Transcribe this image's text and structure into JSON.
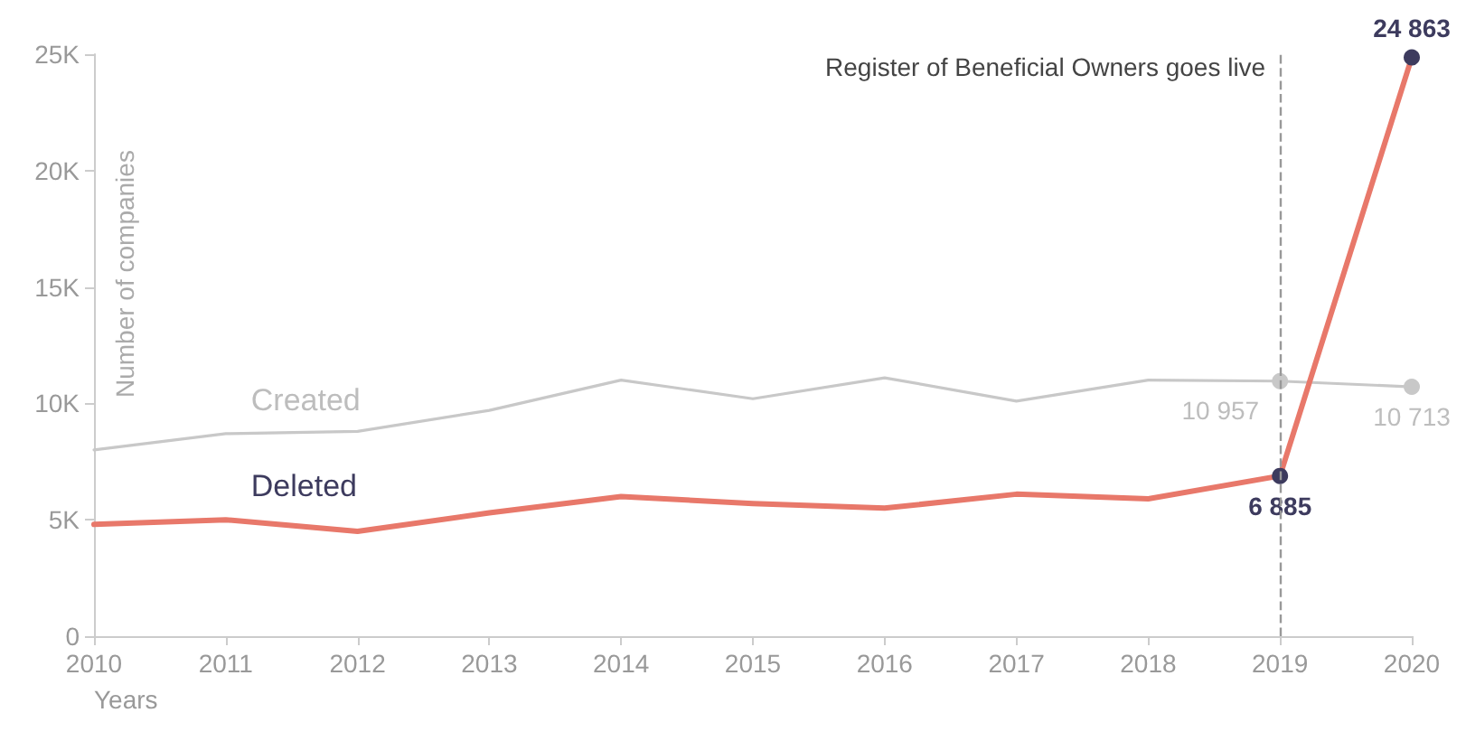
{
  "chart_data": {
    "type": "line",
    "xlabel": "Years",
    "ylabel": "Number of companies",
    "x": [
      2010,
      2011,
      2012,
      2013,
      2014,
      2015,
      2016,
      2017,
      2018,
      2019,
      2020
    ],
    "series": [
      {
        "name": "Created",
        "color": "#c8c8c8",
        "values": [
          8000,
          8700,
          8800,
          9700,
          11000,
          10200,
          11100,
          10100,
          11000,
          10957,
          10713
        ],
        "value_labels": [
          null,
          null,
          null,
          null,
          null,
          null,
          null,
          null,
          null,
          "10 957",
          "10 713"
        ]
      },
      {
        "name": "Deleted",
        "color": "#e8786a",
        "values": [
          4800,
          5000,
          4500,
          5300,
          6000,
          5700,
          5500,
          6100,
          5900,
          6885,
          24863
        ],
        "value_labels": [
          null,
          null,
          null,
          null,
          null,
          null,
          null,
          null,
          null,
          "6 885",
          "24 863"
        ]
      }
    ],
    "xlim": [
      2010,
      2020
    ],
    "xticks": [
      2010,
      2011,
      2012,
      2013,
      2014,
      2015,
      2016,
      2017,
      2018,
      2019,
      2020
    ],
    "ylim": [
      0,
      25000
    ],
    "yticks": [
      {
        "value": 0,
        "label": "0"
      },
      {
        "value": 5000,
        "label": "5K"
      },
      {
        "value": 10000,
        "label": "10K"
      },
      {
        "value": 15000,
        "label": "15K"
      },
      {
        "value": 20000,
        "label": "20K"
      },
      {
        "value": 25000,
        "label": "25K"
      }
    ],
    "ref_lines": [
      {
        "axis": "x",
        "value": 2019,
        "label": "Register of Beneficial Owners goes live",
        "color": "#999999",
        "line_style": "dashed"
      }
    ],
    "line_style": "solid",
    "grid": false,
    "legend": false
  }
}
